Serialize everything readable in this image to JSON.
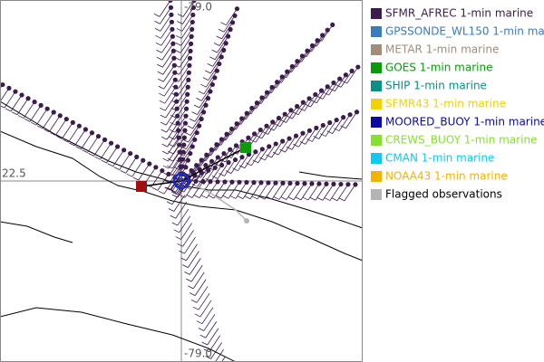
{
  "map": {
    "axis_labels": {
      "latitude": "22.5",
      "longitude_top": "-79.0",
      "longitude_bottom": "-79.0"
    },
    "legend": [
      {
        "label": "SFMR_AFREC 1-min marine",
        "color": "#3b1c4c"
      },
      {
        "label": "GPSSONDE_WL150 1-min marine",
        "color": "#3a7bbd"
      },
      {
        "label": "METAR 1-min marine",
        "color": "#a38d78"
      },
      {
        "label": "GOES 1-min marine",
        "color": "#0a9a0a"
      },
      {
        "label": "SHIP 1-min marine",
        "color": "#0a8f86"
      },
      {
        "label": "SFMR43 1-min marine",
        "color": "#f2d200"
      },
      {
        "label": "MOORED_BUOY 1-min marine",
        "color": "#0a0aa0"
      },
      {
        "label": "CREWS_BUOY 1-min marine",
        "color": "#86e030"
      },
      {
        "label": "CMAN 1-min marine",
        "color": "#10c8f0"
      },
      {
        "label": "NOAA43 1-min marine",
        "color": "#f2b400"
      },
      {
        "label": "Flagged observations",
        "color": "#b4b4b4",
        "text_color": "#000000"
      }
    ]
  }
}
